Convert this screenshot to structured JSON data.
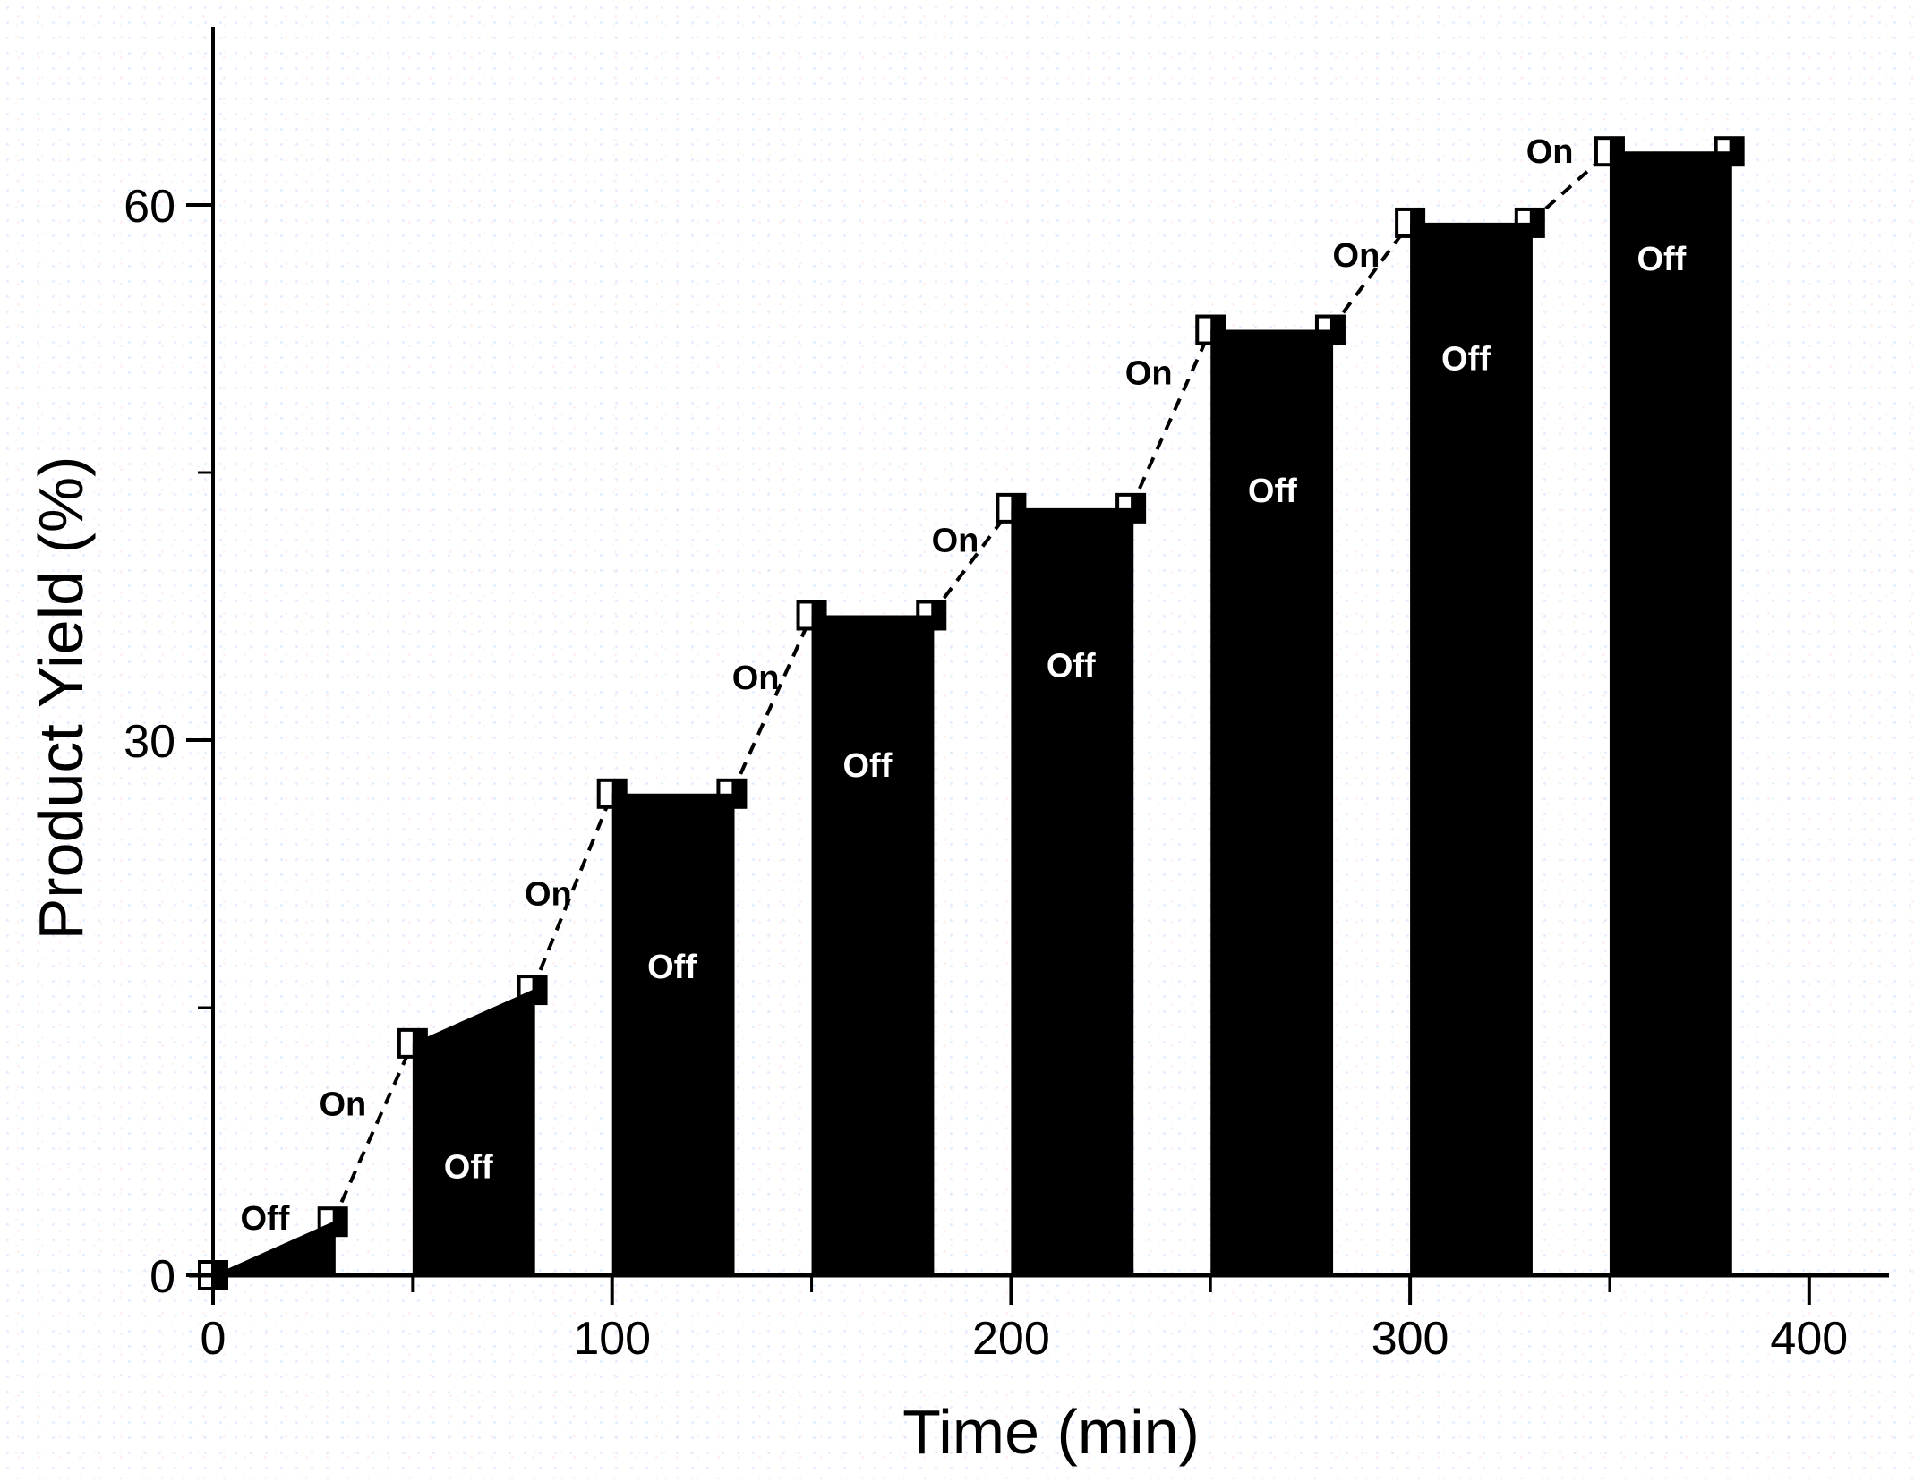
{
  "figure": {
    "background": "#ffffff",
    "ink": "#000000",
    "off_label_inside_color": "#ffffff",
    "on_label_color": "#000000"
  },
  "x_axis": {
    "title": "Time (min)",
    "major_ticks": [
      0,
      100,
      200,
      300,
      400
    ],
    "minor_ticks": [
      50,
      150,
      250,
      350
    ],
    "range": [
      0,
      420
    ]
  },
  "y_axis": {
    "title": "Product Yield (%)",
    "major_ticks": [
      0,
      30,
      60
    ],
    "minor_ticks": [
      15,
      45
    ],
    "range": [
      0,
      70
    ]
  },
  "chart_data": {
    "type": "area",
    "title": "",
    "xlabel": "Time (min)",
    "ylabel": "Product Yield (%)",
    "xlim": [
      0,
      420
    ],
    "ylim": [
      0,
      70
    ],
    "grid": false,
    "legend": false,
    "description": "Product yield versus time over light On/Off cycles: dark (Off) periods drawn as solid black filled areas, illuminated (On) periods drawn as thin dashed rising lines between half-filled square data markers",
    "marker_style": "square-right-half-filled",
    "points": [
      [
        0,
        0
      ],
      [
        30,
        3
      ],
      [
        50,
        13
      ],
      [
        80,
        16
      ],
      [
        100,
        27
      ],
      [
        130,
        27
      ],
      [
        150,
        37
      ],
      [
        180,
        37
      ],
      [
        200,
        43
      ],
      [
        230,
        43
      ],
      [
        250,
        53
      ],
      [
        280,
        53
      ],
      [
        300,
        59
      ],
      [
        330,
        59
      ],
      [
        350,
        63
      ],
      [
        380,
        63
      ]
    ],
    "off_areas": [
      {
        "t": [
          0,
          30
        ],
        "yield": [
          0,
          3
        ]
      },
      {
        "t": [
          50,
          80
        ],
        "yield": [
          13,
          16
        ]
      },
      {
        "t": [
          100,
          130
        ],
        "yield": [
          27,
          27
        ]
      },
      {
        "t": [
          150,
          180
        ],
        "yield": [
          37,
          37
        ]
      },
      {
        "t": [
          200,
          230
        ],
        "yield": [
          43,
          43
        ]
      },
      {
        "t": [
          250,
          280
        ],
        "yield": [
          53,
          53
        ]
      },
      {
        "t": [
          300,
          330
        ],
        "yield": [
          59,
          59
        ]
      },
      {
        "t": [
          350,
          380
        ],
        "yield": [
          63,
          63
        ]
      }
    ],
    "on_segments": [
      {
        "from": [
          30,
          3
        ],
        "to": [
          50,
          13
        ]
      },
      {
        "from": [
          80,
          16
        ],
        "to": [
          100,
          27
        ]
      },
      {
        "from": [
          130,
          27
        ],
        "to": [
          150,
          37
        ]
      },
      {
        "from": [
          180,
          37
        ],
        "to": [
          200,
          43
        ]
      },
      {
        "from": [
          230,
          43
        ],
        "to": [
          250,
          53
        ]
      },
      {
        "from": [
          280,
          53
        ],
        "to": [
          300,
          59
        ]
      },
      {
        "from": [
          330,
          59
        ],
        "to": [
          350,
          63
        ]
      }
    ],
    "annotations": {
      "on_labels": [
        {
          "text": "On",
          "t": 32.5,
          "yield": 9.6
        },
        {
          "text": "On",
          "t": 84,
          "yield": 21.4
        },
        {
          "text": "On",
          "t": 136,
          "yield": 33.5
        },
        {
          "text": "On",
          "t": 186,
          "yield": 41.2
        },
        {
          "text": "On",
          "t": 234.5,
          "yield": 50.6
        },
        {
          "text": "On",
          "t": 286.5,
          "yield": 57.2
        },
        {
          "text": "On",
          "t": 335,
          "yield": 63.0
        }
      ],
      "off_labels": [
        {
          "text": "Off",
          "t": 13,
          "yield": 3.2,
          "inside": false
        },
        {
          "text": "Off",
          "t": 64,
          "yield": 6.1,
          "inside": true
        },
        {
          "text": "Off",
          "t": 115,
          "yield": 17.3,
          "inside": true
        },
        {
          "text": "Off",
          "t": 164,
          "yield": 28.6,
          "inside": true
        },
        {
          "text": "Off",
          "t": 215,
          "yield": 34.2,
          "inside": true
        },
        {
          "text": "Off",
          "t": 265.5,
          "yield": 44.0,
          "inside": true
        },
        {
          "text": "Off",
          "t": 314,
          "yield": 51.4,
          "inside": true
        },
        {
          "text": "Off",
          "t": 363,
          "yield": 57.0,
          "inside": true
        }
      ]
    }
  }
}
